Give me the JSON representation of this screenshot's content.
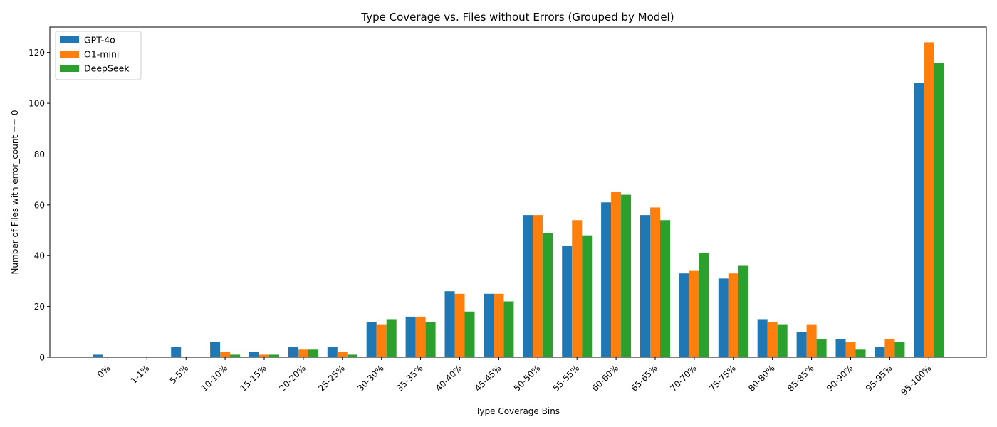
{
  "chart_data": {
    "type": "bar",
    "title": "Type Coverage vs. Files without Errors (Grouped by Model)",
    "xlabel": "Type Coverage Bins",
    "ylabel": "Number of Files with error_count == 0",
    "ylim": [
      0,
      130
    ],
    "yticks": [
      0,
      20,
      40,
      60,
      80,
      100,
      120
    ],
    "grid": false,
    "legend_position": "top-left",
    "categories": [
      "0%",
      "1-1%",
      "5-5%",
      "10-10%",
      "15-15%",
      "20-20%",
      "25-25%",
      "30-30%",
      "35-35%",
      "40-40%",
      "45-45%",
      "50-50%",
      "55-55%",
      "60-60%",
      "65-65%",
      "70-70%",
      "75-75%",
      "80-80%",
      "85-85%",
      "90-90%",
      "95-95%",
      "95-100%"
    ],
    "series": [
      {
        "name": "GPT-4o",
        "color": "#1f77b4",
        "values": [
          1,
          0,
          4,
          6,
          2,
          4,
          4,
          14,
          16,
          26,
          25,
          56,
          44,
          61,
          56,
          33,
          31,
          15,
          10,
          7,
          4,
          108
        ]
      },
      {
        "name": "O1-mini",
        "color": "#ff7f0e",
        "values": [
          0,
          0,
          0,
          2,
          1,
          3,
          2,
          13,
          16,
          25,
          25,
          56,
          54,
          65,
          59,
          34,
          33,
          14,
          13,
          6,
          7,
          124
        ]
      },
      {
        "name": "DeepSeek",
        "color": "#2ca02c",
        "values": [
          0,
          0,
          0,
          1,
          1,
          3,
          1,
          15,
          14,
          18,
          22,
          49,
          48,
          64,
          54,
          41,
          36,
          13,
          7,
          3,
          6,
          116
        ]
      }
    ]
  }
}
